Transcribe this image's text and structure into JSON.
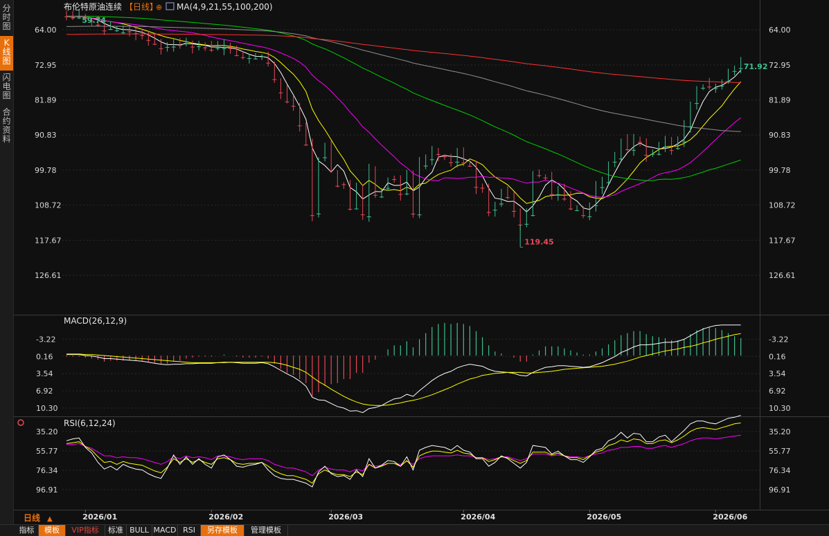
{
  "sidebar": {
    "tabs": [
      {
        "label": "分时图",
        "active": false
      },
      {
        "label": "K线图",
        "active": true
      },
      {
        "label": "闪电图",
        "active": false
      },
      {
        "label": "合约资料",
        "active": false
      }
    ]
  },
  "header": {
    "title": "布伦特原油连续",
    "period": "【日线】",
    "ma_label": "MA(4,9,21,55,100,200)"
  },
  "macd_label": "MACD(26,12,9)",
  "rsi_label": "RSI(6,12,24)",
  "period_button": "日线",
  "bottom_tabs": [
    "指标",
    "模板",
    "VIP指标",
    "标准",
    "BULL",
    "MACD",
    "RSI",
    "另存模板",
    "管理模板"
  ],
  "colors": {
    "up": "#e84856",
    "down": "#3fbf8f",
    "bg": "#101010",
    "ma4": "#ffffff",
    "ma9": "#ffff00",
    "ma21": "#ff00ff",
    "ma55": "#00d000",
    "ma100": "#909090",
    "ma200": "#ff3030"
  },
  "chart_data": {
    "type": "candlestick",
    "x_ticks": [
      "2026/01",
      "2026/02",
      "2026/03",
      "2026/04",
      "2026/05",
      "2026/06"
    ],
    "x_tick_index": [
      3,
      23,
      42,
      63,
      83,
      103
    ],
    "price_axis": {
      "ticks": [
        126.61,
        117.67,
        108.72,
        99.78,
        90.83,
        81.89,
        72.95,
        64.0
      ],
      "range": [
        57.5,
        128.5
      ]
    },
    "annotations": {
      "high": "119.45",
      "high_value": 119.45,
      "low": "59.74",
      "low_value": 59.74,
      "last": "71.92",
      "last_value": 71.92
    },
    "closes": [
      60.6,
      60.9,
      60.5,
      61.0,
      61.7,
      62.7,
      64.2,
      63.6,
      64.1,
      63.8,
      64.4,
      64.9,
      65.4,
      66.6,
      67.6,
      68.7,
      68.0,
      66.8,
      67.9,
      67.3,
      68.3,
      67.7,
      68.5,
      69.1,
      68.3,
      68.1,
      68.7,
      70.5,
      71.0,
      70.8,
      70.7,
      70.6,
      72.4,
      76.6,
      80.0,
      82.3,
      83.4,
      88.4,
      93.3,
      111.3,
      96.8,
      93.1,
      99.9,
      103.8,
      103.4,
      109.7,
      104.4,
      111.1,
      99.4,
      106.1,
      104.7,
      101.9,
      102.1,
      105.9,
      101.4,
      110.9,
      98.2,
      96.8,
      95.3,
      95.7,
      96.3,
      97.8,
      95.6,
      97.9,
      98.7,
      104.1,
      104.3,
      110.5,
      108.9,
      105.1,
      106.7,
      110.2,
      113.7,
      111.2,
      100.5,
      101.1,
      101.7,
      105.9,
      104.2,
      107.1,
      109.6,
      109.8,
      111.3,
      108.6,
      104.3,
      103.0,
      98.1,
      96.3,
      92.5,
      94.5,
      91.9,
      92.6,
      95.9,
      95.6,
      93.4,
      92.1,
      94.7,
      92.0,
      88.7,
      83.2,
      79.1,
      78.2,
      78.5,
      78.8,
      77.1,
      74.5,
      73.7,
      71.92
    ],
    "ma_lines": [
      "MA4",
      "MA9",
      "MA21",
      "MA55",
      "MA100",
      "MA200"
    ],
    "macd": {
      "ticks": [
        10.3,
        6.92,
        3.54,
        0.16,
        -3.22
      ],
      "range": [
        -6.0,
        11.5
      ],
      "dif": [
        -0.2,
        -0.2,
        -0.2,
        0.0,
        0.1,
        0.3,
        0.6,
        0.6,
        0.7,
        0.8,
        0.9,
        1.0,
        1.1,
        1.3,
        1.5,
        1.7,
        1.8,
        1.7,
        1.7,
        1.6,
        1.6,
        1.5,
        1.5,
        1.5,
        1.4,
        1.3,
        1.3,
        1.4,
        1.5,
        1.5,
        1.5,
        1.4,
        1.6,
        2.2,
        2.9,
        3.6,
        4.2,
        5.0,
        6.0,
        8.2,
        8.7,
        8.8,
        9.4,
        10.0,
        10.3,
        10.9,
        10.8,
        11.2,
        10.4,
        10.2,
        9.8,
        9.1,
        8.5,
        8.3,
        7.6,
        8.0,
        6.9,
        5.9,
        4.9,
        4.1,
        3.5,
        3.1,
        2.4,
        2.0,
        1.7,
        1.9,
        2.1,
        2.7,
        3.1,
        3.2,
        3.3,
        3.5,
        3.9,
        4.0,
        3.3,
        2.8,
        2.3,
        2.2,
        2.0,
        2.0,
        2.1,
        2.2,
        2.3,
        2.2,
        1.8,
        1.4,
        0.8,
        0.2,
        -0.6,
        -1.1,
        -1.7,
        -2.1,
        -2.1,
        -2.2,
        -2.4,
        -2.6,
        -2.6,
        -2.8,
        -3.2,
        -3.9,
        -4.6,
        -5.2,
        -5.6,
        -5.9,
        -6.0,
        -6.0,
        -6.0,
        -6.0
      ],
      "dea": [
        -0.3,
        -0.3,
        -0.3,
        -0.2,
        -0.2,
        -0.1,
        0.0,
        0.1,
        0.2,
        0.3,
        0.4,
        0.5,
        0.6,
        0.7,
        0.8,
        0.9,
        1.0,
        1.1,
        1.2,
        1.3,
        1.4,
        1.4,
        1.4,
        1.4,
        1.4,
        1.4,
        1.3,
        1.3,
        1.3,
        1.3,
        1.3,
        1.3,
        1.3,
        1.4,
        1.6,
        1.9,
        2.3,
        2.7,
        3.3,
        4.2,
        5.1,
        5.8,
        6.6,
        7.3,
        8.0,
        8.6,
        9.1,
        9.5,
        9.7,
        9.8,
        9.8,
        9.7,
        9.5,
        9.3,
        9.0,
        8.8,
        8.5,
        8.1,
        7.7,
        7.2,
        6.7,
        6.2,
        5.6,
        5.1,
        4.6,
        4.3,
        3.9,
        3.7,
        3.5,
        3.4,
        3.3,
        3.3,
        3.3,
        3.4,
        3.4,
        3.3,
        3.2,
        3.1,
        2.9,
        2.7,
        2.6,
        2.5,
        2.4,
        2.3,
        2.2,
        2.1,
        1.9,
        1.7,
        1.4,
        1.1,
        0.7,
        0.3,
        0.0,
        -0.3,
        -0.6,
        -0.9,
        -1.1,
        -1.3,
        -1.6,
        -1.8,
        -2.1,
        -2.5,
        -2.8,
        -3.2,
        -3.5,
        -3.8,
        -4.1,
        -4.3
      ]
    },
    "rsi": {
      "ticks": [
        96.91,
        76.34,
        55.77,
        35.2
      ],
      "range": [
        18.0,
        100.0
      ],
      "rsi6": [
        45,
        43,
        42,
        52,
        58,
        68,
        75,
        72,
        76,
        70,
        73,
        75,
        76,
        80,
        83,
        85,
        74,
        60,
        70,
        62,
        70,
        64,
        70,
        74,
        62,
        60,
        65,
        72,
        73,
        71,
        70,
        68,
        76,
        82,
        85,
        86,
        86,
        88,
        90,
        94,
        78,
        72,
        80,
        83,
        82,
        86,
        76,
        83,
        64,
        74,
        71,
        66,
        67,
        72,
        62,
        76,
        55,
        52,
        50,
        51,
        52,
        55,
        50,
        55,
        57,
        64,
        64,
        72,
        68,
        61,
        64,
        69,
        74,
        68,
        50,
        51,
        52,
        59,
        56,
        61,
        65,
        65,
        68,
        62,
        55,
        53,
        45,
        42,
        36,
        42,
        37,
        38,
        46,
        46,
        41,
        39,
        46,
        40,
        34,
        27,
        24,
        24,
        26,
        27,
        24,
        21,
        20,
        18
      ],
      "rsi12": [
        48,
        47,
        46,
        51,
        55,
        62,
        68,
        67,
        70,
        67,
        69,
        70,
        71,
        74,
        77,
        79,
        73,
        64,
        68,
        64,
        68,
        65,
        68,
        70,
        64,
        63,
        65,
        69,
        70,
        69,
        69,
        68,
        72,
        77,
        80,
        82,
        82,
        84,
        86,
        90,
        80,
        76,
        79,
        81,
        81,
        83,
        78,
        81,
        70,
        74,
        72,
        69,
        69,
        72,
        66,
        73,
        61,
        58,
        56,
        56,
        57,
        58,
        55,
        58,
        59,
        63,
        63,
        67,
        65,
        62,
        63,
        66,
        69,
        66,
        57,
        57,
        57,
        60,
        58,
        61,
        63,
        63,
        65,
        61,
        57,
        55,
        50,
        48,
        44,
        46,
        43,
        44,
        48,
        48,
        45,
        44,
        47,
        44,
        40,
        35,
        32,
        31,
        32,
        33,
        31,
        29,
        27,
        26
      ],
      "rsi24": [
        49,
        49,
        48,
        51,
        53,
        57,
        61,
        61,
        63,
        62,
        63,
        63,
        64,
        66,
        68,
        70,
        67,
        62,
        64,
        61,
        63,
        62,
        63,
        65,
        61,
        61,
        62,
        64,
        65,
        64,
        64,
        64,
        66,
        70,
        72,
        74,
        74,
        76,
        78,
        82,
        76,
        73,
        75,
        76,
        76,
        78,
        75,
        77,
        70,
        72,
        71,
        69,
        69,
        70,
        67,
        70,
        64,
        62,
        61,
        61,
        61,
        61,
        60,
        61,
        61,
        63,
        63,
        65,
        64,
        62,
        62,
        64,
        66,
        64,
        59,
        59,
        59,
        61,
        60,
        61,
        62,
        62,
        63,
        61,
        59,
        58,
        55,
        54,
        52,
        52,
        51,
        51,
        53,
        53,
        51,
        50,
        52,
        50,
        48,
        45,
        43,
        42,
        42,
        43,
        42,
        41,
        40,
        39
      ]
    }
  }
}
